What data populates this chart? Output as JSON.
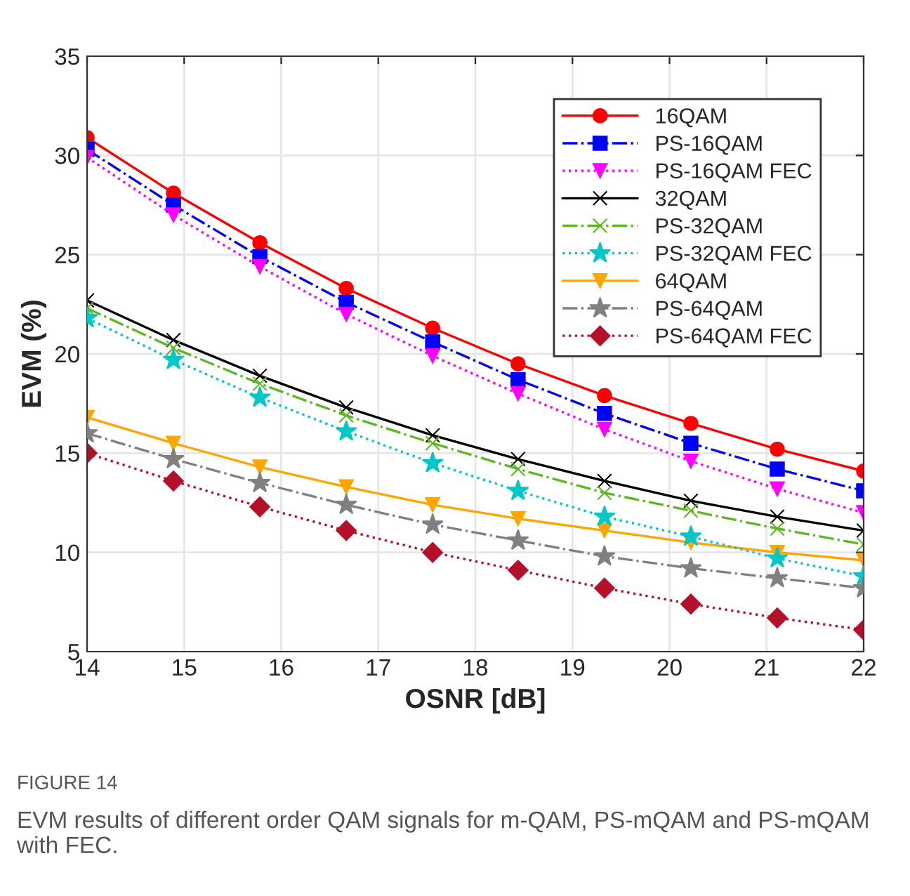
{
  "chart_data": {
    "type": "line",
    "xlabel": "OSNR [dB]",
    "ylabel": "EVM (%)",
    "x": [
      14,
      14.89,
      15.78,
      16.67,
      17.56,
      18.44,
      19.33,
      20.22,
      21.11,
      22
    ],
    "series": [
      {
        "name": "16QAM",
        "color": "#ff0000",
        "marker": "circle",
        "line_style": "solid",
        "values": [
          30.9,
          28.1,
          25.6,
          23.3,
          21.3,
          19.5,
          17.9,
          16.5,
          15.2,
          14.1
        ]
      },
      {
        "name": "PS-16QAM",
        "color": "#0000ff",
        "marker": "square",
        "line_style": "dashed",
        "values": [
          30.3,
          27.5,
          24.9,
          22.6,
          20.6,
          18.7,
          17.0,
          15.5,
          14.2,
          13.1
        ]
      },
      {
        "name": "PS-16QAM FEC",
        "color": "#ff00ff",
        "marker": "triangle",
        "line_style": "dotted",
        "values": [
          29.9,
          27.0,
          24.4,
          22.0,
          19.9,
          18.0,
          16.2,
          14.6,
          13.2,
          12.0
        ]
      },
      {
        "name": "32QAM",
        "color": "#000000",
        "marker": "cross",
        "line_style": "solid",
        "values": [
          22.7,
          20.7,
          18.9,
          17.3,
          15.9,
          14.7,
          13.6,
          12.6,
          11.8,
          11.1
        ]
      },
      {
        "name": "PS-32QAM",
        "color": "#5bb81e",
        "marker": "cross",
        "line_style": "dashed",
        "values": [
          22.3,
          20.3,
          18.5,
          16.9,
          15.5,
          14.2,
          13.0,
          12.1,
          11.2,
          10.4
        ]
      },
      {
        "name": "PS-32QAM FEC",
        "color": "#00c8c8",
        "marker": "star",
        "line_style": "dotted",
        "values": [
          21.8,
          19.7,
          17.8,
          16.1,
          14.5,
          13.1,
          11.8,
          10.8,
          9.7,
          8.8
        ]
      },
      {
        "name": "64QAM",
        "color": "#ffa500",
        "marker": "triangle",
        "line_style": "solid",
        "values": [
          16.8,
          15.5,
          14.3,
          13.3,
          12.4,
          11.7,
          11.1,
          10.5,
          10.0,
          9.6
        ]
      },
      {
        "name": "PS-64QAM",
        "color": "#808080",
        "marker": "star",
        "line_style": "dashed",
        "values": [
          16.0,
          14.7,
          13.5,
          12.4,
          11.4,
          10.6,
          9.8,
          9.2,
          8.7,
          8.2
        ]
      },
      {
        "name": "PS-64QAM FEC",
        "color": "#b5102a",
        "marker": "diamond",
        "line_style": "dotted",
        "values": [
          15.0,
          13.6,
          12.3,
          11.1,
          10.0,
          9.1,
          8.2,
          7.4,
          6.7,
          6.1
        ]
      }
    ],
    "xlim": [
      14,
      22
    ],
    "ylim": [
      5,
      35
    ],
    "xticks": [
      14,
      15,
      16,
      17,
      18,
      19,
      20,
      21,
      22
    ],
    "yticks": [
      5,
      10,
      15,
      20,
      25,
      30,
      35
    ],
    "grid": true,
    "legend": "top right",
    "annotations": [
      "FIGURE 14",
      "EVM results of different order QAM signals for m-QAM, PS-mQAM and PS-mQAM with FEC."
    ]
  }
}
